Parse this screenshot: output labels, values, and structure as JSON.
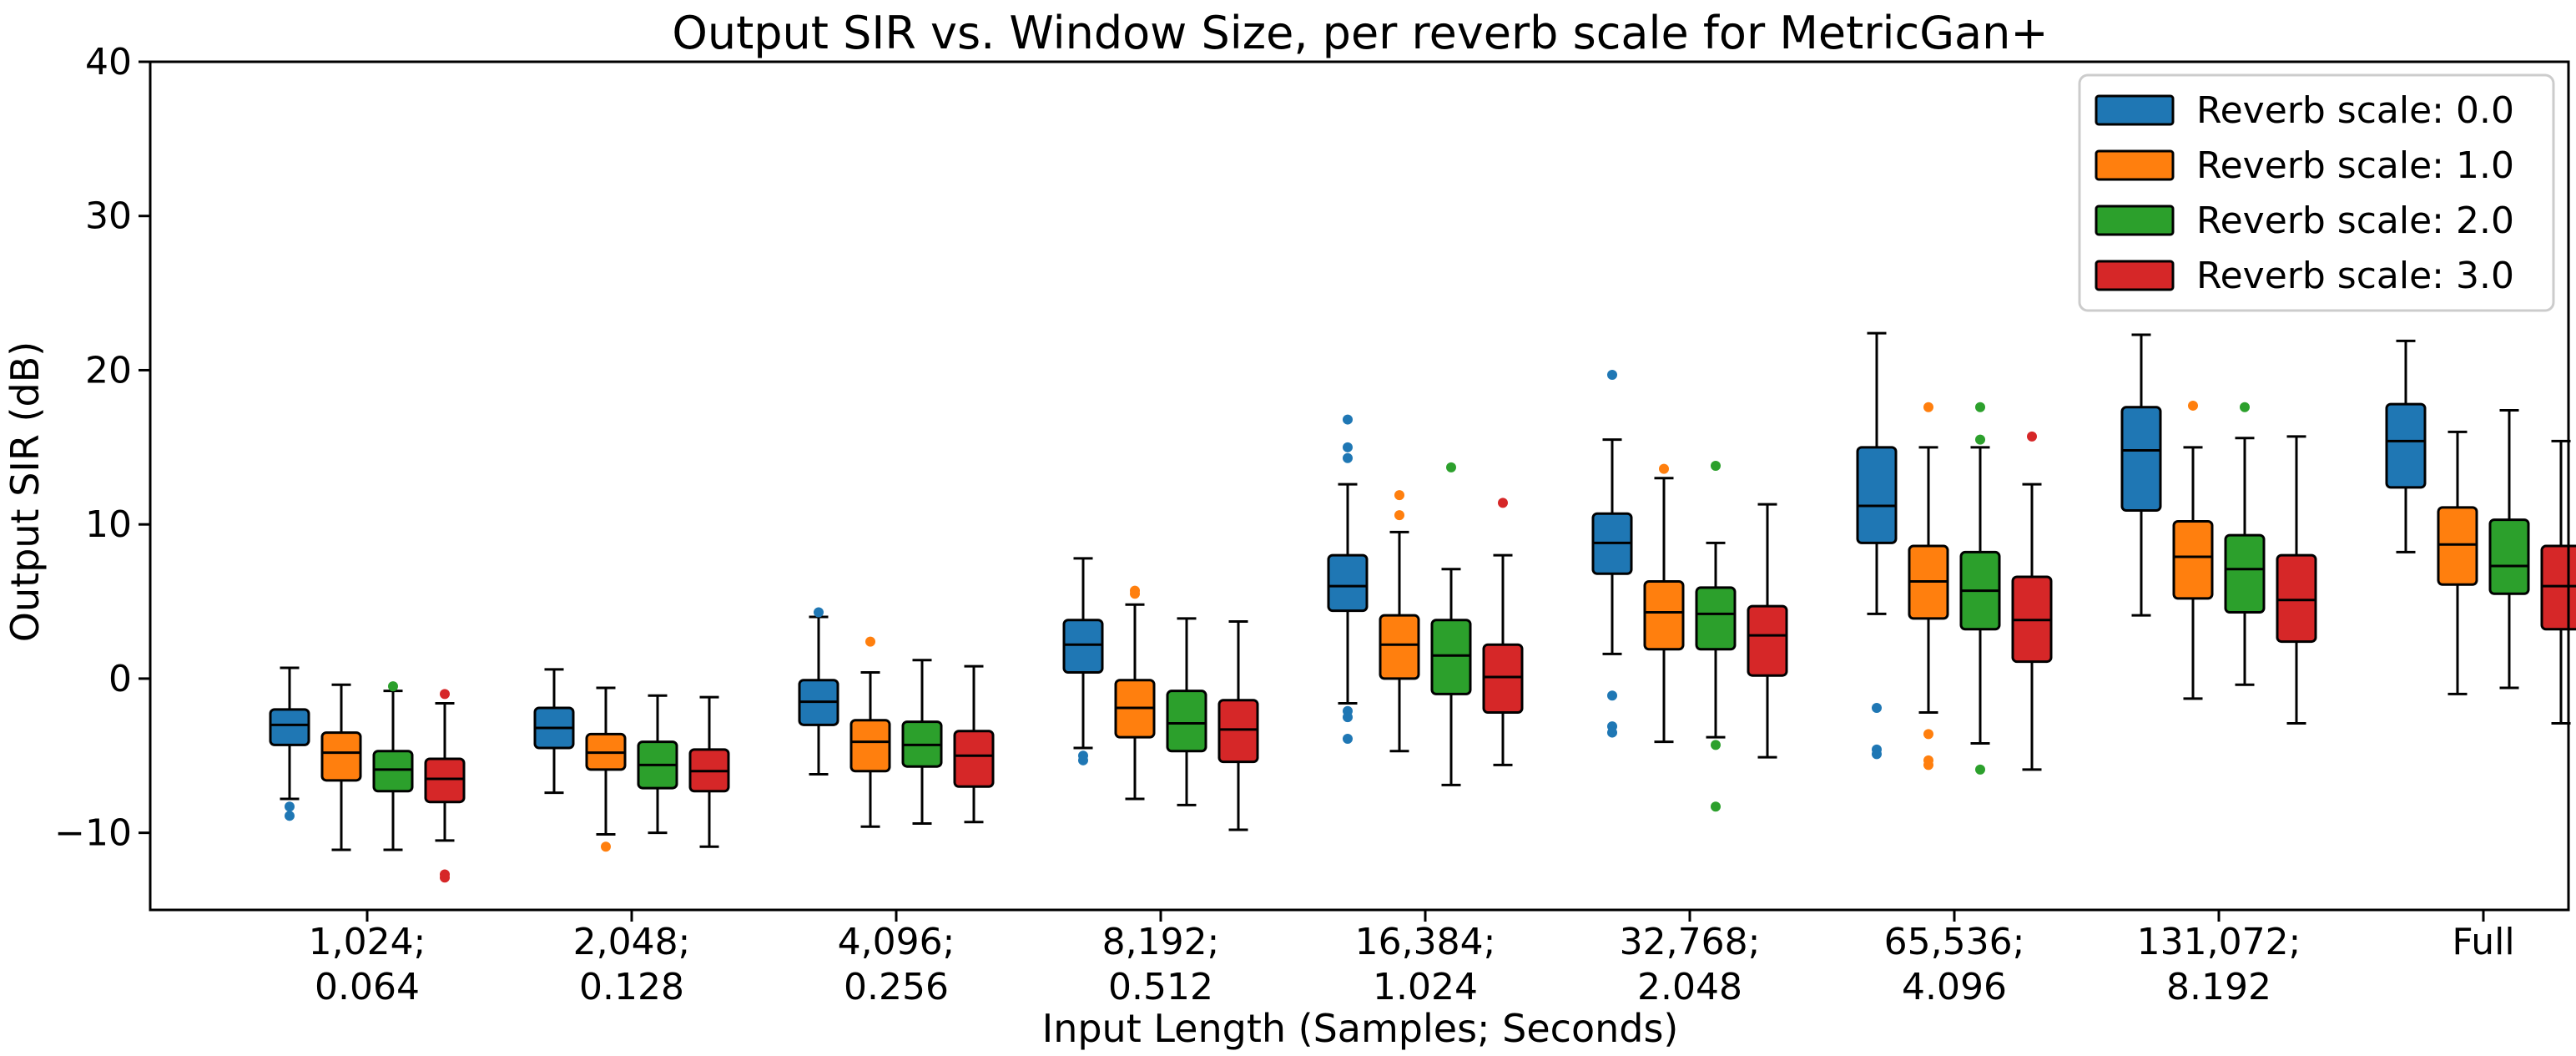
{
  "chart_data": {
    "type": "box",
    "title": "Output SIR vs. Window Size, per reverb scale for MetricGan+",
    "xlabel": "Input Length (Samples; Seconds)",
    "ylabel": "Output SIR (dB)",
    "ylim": [
      -15,
      40
    ],
    "yticks": [
      -10,
      0,
      10,
      20,
      30,
      40
    ],
    "ytick_labels": [
      "−10",
      "0",
      "10",
      "20",
      "30",
      "40"
    ],
    "grid": false,
    "legend_position": "top-right",
    "categories": [
      [
        "1,024;",
        "0.064"
      ],
      [
        "2,048;",
        "0.128"
      ],
      [
        "4,096;",
        "0.256"
      ],
      [
        "8,192;",
        "0.512"
      ],
      [
        "16,384;",
        "1.024"
      ],
      [
        "32,768;",
        "2.048"
      ],
      [
        "65,536;",
        "4.096"
      ],
      [
        "131,072;",
        "8.192"
      ],
      [
        "Full",
        ""
      ]
    ],
    "series": [
      {
        "name": "Reverb scale: 0.0",
        "color": "#1f77b4",
        "boxes": [
          {
            "whislo": -7.8,
            "q1": -4.3,
            "med": -3.0,
            "q3": -2.0,
            "whishi": 0.7,
            "fliers": [
              -8.3,
              -8.9
            ]
          },
          {
            "whislo": -7.4,
            "q1": -4.5,
            "med": -3.2,
            "q3": -1.9,
            "whishi": 0.6,
            "fliers": []
          },
          {
            "whislo": -6.2,
            "q1": -3.0,
            "med": -1.5,
            "q3": -0.1,
            "whishi": 4.0,
            "fliers": [
              4.3
            ]
          },
          {
            "whislo": -4.5,
            "q1": 0.4,
            "med": 2.2,
            "q3": 3.8,
            "whishi": 7.8,
            "fliers": [
              -5.0,
              -5.3
            ]
          },
          {
            "whislo": -1.6,
            "q1": 4.4,
            "med": 6.0,
            "q3": 8.0,
            "whishi": 12.6,
            "fliers": [
              16.8,
              15.0,
              14.3,
              -2.1,
              -2.5,
              -3.9
            ]
          },
          {
            "whislo": 1.6,
            "q1": 6.8,
            "med": 8.8,
            "q3": 10.7,
            "whishi": 15.5,
            "fliers": [
              19.7,
              -1.1,
              -3.1,
              -3.5
            ]
          },
          {
            "whislo": 4.2,
            "q1": 8.8,
            "med": 11.2,
            "q3": 15.0,
            "whishi": 22.4,
            "fliers": [
              -1.9,
              -4.6,
              -4.9
            ]
          },
          {
            "whislo": 4.1,
            "q1": 10.9,
            "med": 14.8,
            "q3": 17.6,
            "whishi": 22.3,
            "fliers": []
          },
          {
            "whislo": 8.2,
            "q1": 12.4,
            "med": 15.4,
            "q3": 17.8,
            "whishi": 21.9,
            "fliers": []
          }
        ]
      },
      {
        "name": "Reverb scale: 1.0",
        "color": "#ff7f0e",
        "boxes": [
          {
            "whislo": -11.1,
            "q1": -6.6,
            "med": -4.8,
            "q3": -3.5,
            "whishi": -0.4,
            "fliers": []
          },
          {
            "whislo": -10.1,
            "q1": -5.9,
            "med": -4.8,
            "q3": -3.6,
            "whishi": -0.6,
            "fliers": [
              -10.9
            ]
          },
          {
            "whislo": -9.6,
            "q1": -6.0,
            "med": -4.1,
            "q3": -2.7,
            "whishi": 0.4,
            "fliers": [
              2.4
            ]
          },
          {
            "whislo": -7.8,
            "q1": -3.8,
            "med": -1.9,
            "q3": -0.1,
            "whishi": 4.8,
            "fliers": [
              5.7,
              5.5
            ]
          },
          {
            "whislo": -4.7,
            "q1": 0.0,
            "med": 2.2,
            "q3": 4.1,
            "whishi": 9.5,
            "fliers": [
              11.9,
              10.6
            ]
          },
          {
            "whislo": -4.1,
            "q1": 1.9,
            "med": 4.3,
            "q3": 6.3,
            "whishi": 13.0,
            "fliers": [
              13.6
            ]
          },
          {
            "whislo": -2.2,
            "q1": 3.9,
            "med": 6.3,
            "q3": 8.6,
            "whishi": 15.0,
            "fliers": [
              17.6,
              -3.6,
              -5.3,
              -5.6
            ]
          },
          {
            "whislo": -1.3,
            "q1": 5.2,
            "med": 7.9,
            "q3": 10.2,
            "whishi": 15.0,
            "fliers": [
              17.7
            ]
          },
          {
            "whislo": -1.0,
            "q1": 6.1,
            "med": 8.7,
            "q3": 11.1,
            "whishi": 16.0,
            "fliers": []
          }
        ]
      },
      {
        "name": "Reverb scale: 2.0",
        "color": "#2ca02c",
        "boxes": [
          {
            "whislo": -11.1,
            "q1": -7.3,
            "med": -5.9,
            "q3": -4.7,
            "whishi": -0.8,
            "fliers": [
              -0.5
            ]
          },
          {
            "whislo": -10.0,
            "q1": -7.1,
            "med": -5.6,
            "q3": -4.1,
            "whishi": -1.1,
            "fliers": []
          },
          {
            "whislo": -9.4,
            "q1": -5.7,
            "med": -4.3,
            "q3": -2.8,
            "whishi": 1.2,
            "fliers": []
          },
          {
            "whislo": -8.2,
            "q1": -4.7,
            "med": -2.9,
            "q3": -0.8,
            "whishi": 3.9,
            "fliers": []
          },
          {
            "whislo": -6.9,
            "q1": -1.0,
            "med": 1.5,
            "q3": 3.8,
            "whishi": 7.1,
            "fliers": [
              13.7
            ]
          },
          {
            "whislo": -3.8,
            "q1": 1.9,
            "med": 4.2,
            "q3": 5.9,
            "whishi": 8.8,
            "fliers": [
              13.8,
              -4.3,
              -8.3
            ]
          },
          {
            "whislo": -4.2,
            "q1": 3.2,
            "med": 5.7,
            "q3": 8.2,
            "whishi": 15.0,
            "fliers": [
              17.6,
              15.5,
              -5.9
            ]
          },
          {
            "whislo": -0.4,
            "q1": 4.3,
            "med": 7.1,
            "q3": 9.3,
            "whishi": 15.6,
            "fliers": [
              17.6
            ]
          },
          {
            "whislo": -0.6,
            "q1": 5.5,
            "med": 7.3,
            "q3": 10.3,
            "whishi": 17.4,
            "fliers": []
          }
        ]
      },
      {
        "name": "Reverb scale: 3.0",
        "color": "#d62728",
        "boxes": [
          {
            "whislo": -10.5,
            "q1": -8.0,
            "med": -6.5,
            "q3": -5.2,
            "whishi": -1.6,
            "fliers": [
              -1.0,
              -12.7,
              -12.9
            ]
          },
          {
            "whislo": -10.9,
            "q1": -7.3,
            "med": -6.0,
            "q3": -4.6,
            "whishi": -1.2,
            "fliers": []
          },
          {
            "whislo": -9.3,
            "q1": -7.0,
            "med": -5.0,
            "q3": -3.4,
            "whishi": 0.8,
            "fliers": []
          },
          {
            "whislo": -9.8,
            "q1": -5.4,
            "med": -3.3,
            "q3": -1.4,
            "whishi": 3.7,
            "fliers": []
          },
          {
            "whislo": -5.6,
            "q1": -2.2,
            "med": 0.1,
            "q3": 2.2,
            "whishi": 8.0,
            "fliers": [
              11.4
            ]
          },
          {
            "whislo": -5.1,
            "q1": 0.2,
            "med": 2.8,
            "q3": 4.7,
            "whishi": 11.3,
            "fliers": []
          },
          {
            "whislo": -5.9,
            "q1": 1.1,
            "med": 3.8,
            "q3": 6.6,
            "whishi": 12.6,
            "fliers": [
              15.7
            ]
          },
          {
            "whislo": -2.9,
            "q1": 2.4,
            "med": 5.1,
            "q3": 8.0,
            "whishi": 15.7,
            "fliers": []
          },
          {
            "whislo": -2.9,
            "q1": 3.2,
            "med": 6.0,
            "q3": 8.6,
            "whishi": 15.4,
            "fliers": []
          }
        ]
      }
    ]
  }
}
